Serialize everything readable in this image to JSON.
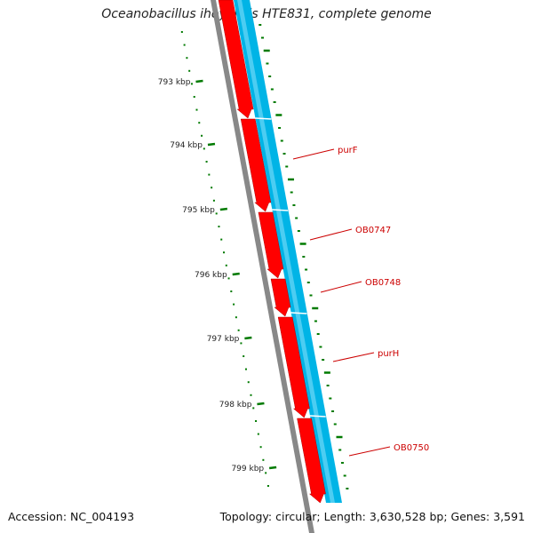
{
  "title": "Oceanobacillus iheyensis HTE831, complete genome",
  "footer": {
    "accession": "Accession: NC_004193",
    "summary": "Topology: circular; Length: 3,630,528 bp; Genes: 3,591"
  },
  "ruler": {
    "unit": "kbp",
    "ticks": [
      "793 kbp",
      "794 kbp",
      "795 kbp",
      "796 kbp",
      "797 kbp",
      "798 kbp",
      "799 kbp"
    ]
  },
  "genes": [
    {
      "label": "purF"
    },
    {
      "label": "OB0747"
    },
    {
      "label": "OB0748"
    },
    {
      "label": "purH"
    },
    {
      "label": "OB0750"
    }
  ],
  "colors": {
    "cds": "#ff0000",
    "gene": "#00b4e6",
    "backbone": "#808080",
    "ruler": "#007a00",
    "label": "#cc0000"
  }
}
